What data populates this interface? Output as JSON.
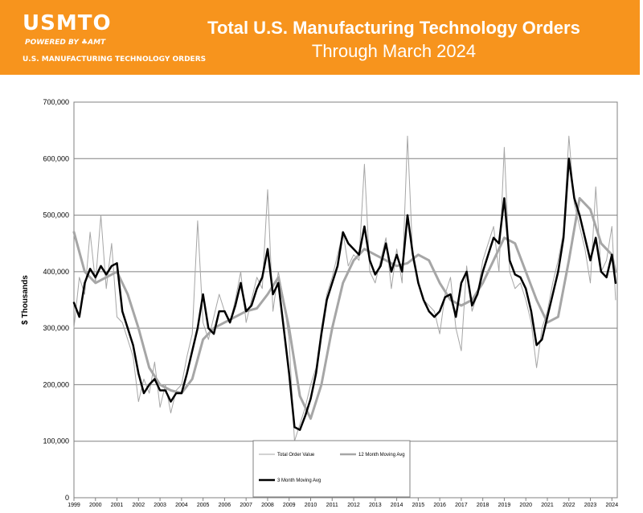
{
  "header": {
    "logo_text": "USMTO",
    "logo_powered": "POWERED BY",
    "logo_amt": "AMT",
    "logo_tagline": "U.S. MANUFACTURING TECHNOLOGY ORDERS",
    "title": "Total U.S. Manufacturing Technology Orders",
    "subtitle": "Through March 2024"
  },
  "colors": {
    "banner": "#f7941d",
    "total_series": "#a6a6a6",
    "ma12_series": "#a6a6a6",
    "ma3_series": "#000000"
  },
  "chart_data": {
    "type": "line",
    "title": "Total U.S. Manufacturing Technology Orders",
    "subtitle": "Through March 2024",
    "xlabel": "",
    "ylabel": "$ Thousands",
    "xlim": [
      1999,
      2024.25
    ],
    "ylim": [
      0,
      700000
    ],
    "yticks": [
      0,
      100000,
      200000,
      300000,
      400000,
      500000,
      600000,
      700000
    ],
    "ytick_labels": [
      "0",
      "100,000",
      "200,000",
      "300,000",
      "400,000",
      "500,000",
      "600,000",
      "700,000"
    ],
    "xtick_labels": [
      "1999",
      "2000",
      "2001",
      "2002",
      "2003",
      "2004",
      "2005",
      "2006",
      "2007",
      "2008",
      "2009",
      "2010",
      "2011",
      "2012",
      "2013",
      "2014",
      "2015",
      "2016",
      "2017",
      "2018",
      "2019",
      "2020",
      "2021",
      "2022",
      "2023",
      "2024"
    ],
    "grid": "horizontal",
    "legend_position": "bottom-center",
    "series": [
      {
        "name": "Total Order Value",
        "style": "thin-gray",
        "x": [
          1999.0,
          1999.25,
          1999.5,
          1999.75,
          2000.0,
          2000.25,
          2000.5,
          2000.75,
          2001.0,
          2001.25,
          2001.5,
          2001.75,
          2002.0,
          2002.25,
          2002.5,
          2002.75,
          2003.0,
          2003.25,
          2003.5,
          2003.75,
          2004.0,
          2004.25,
          2004.5,
          2004.75,
          2005.0,
          2005.25,
          2005.5,
          2005.75,
          2006.0,
          2006.25,
          2006.5,
          2006.75,
          2007.0,
          2007.25,
          2007.5,
          2007.75,
          2008.0,
          2008.25,
          2008.5,
          2008.75,
          2009.0,
          2009.25,
          2009.5,
          2009.75,
          2010.0,
          2010.25,
          2010.5,
          2010.75,
          2011.0,
          2011.25,
          2011.5,
          2011.75,
          2012.0,
          2012.25,
          2012.5,
          2012.75,
          2013.0,
          2013.25,
          2013.5,
          2013.75,
          2014.0,
          2014.25,
          2014.5,
          2014.75,
          2015.0,
          2015.25,
          2015.5,
          2015.75,
          2016.0,
          2016.25,
          2016.5,
          2016.75,
          2017.0,
          2017.25,
          2017.5,
          2017.75,
          2018.0,
          2018.25,
          2018.5,
          2018.75,
          2019.0,
          2019.25,
          2019.5,
          2019.75,
          2020.0,
          2020.25,
          2020.5,
          2020.75,
          2021.0,
          2021.25,
          2021.5,
          2021.75,
          2022.0,
          2022.25,
          2022.5,
          2022.75,
          2023.0,
          2023.25,
          2023.5,
          2023.75,
          2024.0,
          2024.17
        ],
        "values": [
          300000,
          390000,
          360000,
          470000,
          380000,
          500000,
          370000,
          450000,
          320000,
          310000,
          280000,
          250000,
          170000,
          210000,
          185000,
          240000,
          160000,
          200000,
          150000,
          190000,
          200000,
          250000,
          290000,
          490000,
          310000,
          280000,
          320000,
          360000,
          330000,
          310000,
          350000,
          400000,
          310000,
          350000,
          390000,
          370000,
          545000,
          330000,
          400000,
          350000,
          280000,
          100000,
          130000,
          160000,
          200000,
          230000,
          300000,
          360000,
          390000,
          430000,
          470000,
          410000,
          430000,
          420000,
          590000,
          400000,
          380000,
          420000,
          460000,
          370000,
          440000,
          380000,
          640000,
          420000,
          380000,
          350000,
          340000,
          330000,
          290000,
          360000,
          390000,
          300000,
          260000,
          410000,
          330000,
          360000,
          420000,
          450000,
          480000,
          400000,
          620000,
          400000,
          370000,
          380000,
          350000,
          310000,
          230000,
          300000,
          330000,
          380000,
          420000,
          470000,
          640000,
          520000,
          480000,
          440000,
          380000,
          550000,
          400000,
          420000,
          480000,
          350000
        ]
      },
      {
        "name": "3 Month Moving Avg",
        "style": "thick-black",
        "x": [
          1999.0,
          1999.25,
          1999.5,
          1999.75,
          2000.0,
          2000.25,
          2000.5,
          2000.75,
          2001.0,
          2001.25,
          2001.5,
          2001.75,
          2002.0,
          2002.25,
          2002.5,
          2002.75,
          2003.0,
          2003.25,
          2003.5,
          2003.75,
          2004.0,
          2004.25,
          2004.5,
          2004.75,
          2005.0,
          2005.25,
          2005.5,
          2005.75,
          2006.0,
          2006.25,
          2006.5,
          2006.75,
          2007.0,
          2007.25,
          2007.5,
          2007.75,
          2008.0,
          2008.25,
          2008.5,
          2008.75,
          2009.0,
          2009.25,
          2009.5,
          2009.75,
          2010.0,
          2010.25,
          2010.5,
          2010.75,
          2011.0,
          2011.25,
          2011.5,
          2011.75,
          2012.0,
          2012.25,
          2012.5,
          2012.75,
          2013.0,
          2013.25,
          2013.5,
          2013.75,
          2014.0,
          2014.25,
          2014.5,
          2014.75,
          2015.0,
          2015.25,
          2015.5,
          2015.75,
          2016.0,
          2016.25,
          2016.5,
          2016.75,
          2017.0,
          2017.25,
          2017.5,
          2017.75,
          2018.0,
          2018.25,
          2018.5,
          2018.75,
          2019.0,
          2019.25,
          2019.5,
          2019.75,
          2020.0,
          2020.25,
          2020.5,
          2020.75,
          2021.0,
          2021.25,
          2021.5,
          2021.75,
          2022.0,
          2022.25,
          2022.5,
          2022.75,
          2023.0,
          2023.25,
          2023.5,
          2023.75,
          2024.0,
          2024.17
        ],
        "values": [
          345000,
          320000,
          380000,
          405000,
          390000,
          410000,
          395000,
          410000,
          415000,
          330000,
          300000,
          270000,
          220000,
          185000,
          200000,
          210000,
          190000,
          190000,
          170000,
          185000,
          185000,
          220000,
          260000,
          300000,
          360000,
          300000,
          290000,
          330000,
          330000,
          310000,
          340000,
          380000,
          330000,
          340000,
          370000,
          390000,
          440000,
          360000,
          380000,
          300000,
          220000,
          125000,
          120000,
          145000,
          175000,
          220000,
          290000,
          350000,
          380000,
          410000,
          470000,
          450000,
          440000,
          430000,
          480000,
          420000,
          395000,
          410000,
          450000,
          400000,
          430000,
          400000,
          500000,
          430000,
          380000,
          350000,
          330000,
          320000,
          330000,
          355000,
          360000,
          320000,
          380000,
          400000,
          340000,
          360000,
          400000,
          430000,
          460000,
          450000,
          530000,
          420000,
          395000,
          390000,
          370000,
          330000,
          270000,
          280000,
          320000,
          360000,
          400000,
          460000,
          600000,
          530000,
          500000,
          460000,
          420000,
          460000,
          400000,
          390000,
          430000,
          380000
        ]
      },
      {
        "name": "12 Month Moving Avg",
        "style": "medium-gray",
        "x": [
          1999.0,
          1999.5,
          2000.0,
          2000.5,
          2001.0,
          2001.5,
          2002.0,
          2002.5,
          2003.0,
          2003.5,
          2004.0,
          2004.5,
          2005.0,
          2005.5,
          2006.0,
          2006.5,
          2007.0,
          2007.5,
          2008.0,
          2008.5,
          2009.0,
          2009.5,
          2010.0,
          2010.5,
          2011.0,
          2011.5,
          2012.0,
          2012.5,
          2013.0,
          2013.5,
          2014.0,
          2014.5,
          2015.0,
          2015.5,
          2016.0,
          2016.5,
          2017.0,
          2017.5,
          2018.0,
          2018.5,
          2019.0,
          2019.5,
          2020.0,
          2020.5,
          2021.0,
          2021.5,
          2022.0,
          2022.5,
          2023.0,
          2023.5,
          2024.0,
          2024.17
        ],
        "values": [
          470000,
          400000,
          380000,
          390000,
          400000,
          360000,
          300000,
          230000,
          200000,
          190000,
          185000,
          210000,
          280000,
          300000,
          310000,
          320000,
          330000,
          335000,
          360000,
          390000,
          300000,
          180000,
          140000,
          200000,
          300000,
          380000,
          420000,
          440000,
          430000,
          420000,
          410000,
          415000,
          430000,
          420000,
          380000,
          350000,
          340000,
          350000,
          380000,
          420000,
          460000,
          450000,
          400000,
          350000,
          310000,
          320000,
          420000,
          530000,
          510000,
          450000,
          430000,
          400000
        ]
      }
    ]
  }
}
